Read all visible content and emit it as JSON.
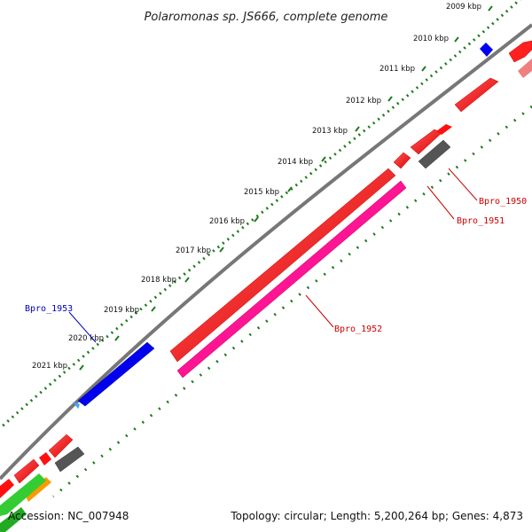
{
  "title": "Polaromonas sp. JS666, complete genome",
  "ticks": [
    "2009 kbp",
    "2010 kbp",
    "2011 kbp",
    "2012 kbp",
    "2013 kbp",
    "2014 kbp",
    "2015 kbp",
    "2016 kbp",
    "2017 kbp",
    "2018 kbp",
    "2019 kbp",
    "2020 kbp",
    "2021 kbp"
  ],
  "gene_labels": {
    "bpro_1950": "Bpro_1950",
    "bpro_1951": "Bpro_1951",
    "bpro_1952": "Bpro_1952",
    "bpro_1953": "Bpro_1953"
  },
  "footer": {
    "accession": "Accession: NC_007948",
    "stats": "Topology: circular; Length: 5,200,264 bp; Genes: 4,873"
  },
  "colors": {
    "backbone": "#777777",
    "forward_red": "#ff0000",
    "reverse_pink": "#ff1493",
    "gene_blue": "#0000ee",
    "gene_gray": "#555555",
    "gene_green": "#33cc33",
    "gene_orange": "#ff9900",
    "tick_green": "#1f7a1f",
    "label_red": "#cc0000",
    "label_blue": "#0000bb"
  }
}
